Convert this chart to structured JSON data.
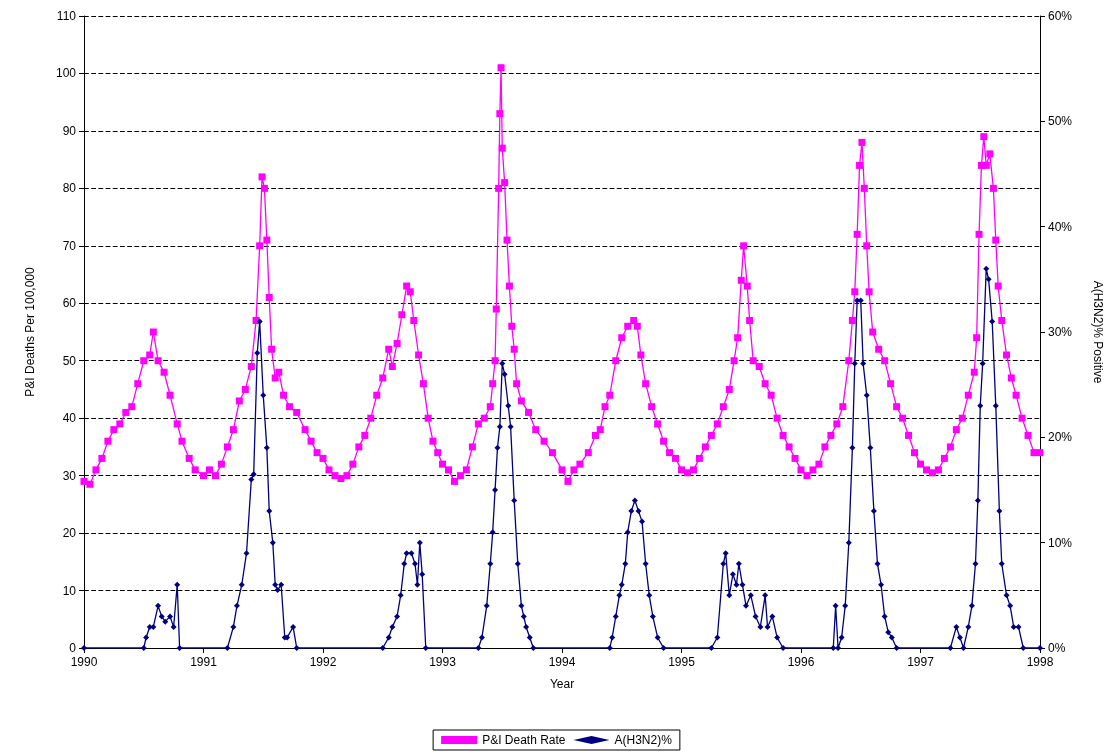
{
  "chart_data": {
    "type": "line",
    "xlabel": "Year",
    "ylabel": "P&I Deaths Per 100,000",
    "y2label": "A(H3N2)% Positive",
    "xlim": [
      1990,
      1998
    ],
    "xticks": [
      1990,
      1991,
      1992,
      1993,
      1994,
      1995,
      1996,
      1997,
      1998
    ],
    "ylim": [
      0,
      110
    ],
    "yticks": [
      0,
      10,
      20,
      30,
      40,
      50,
      60,
      70,
      80,
      90,
      100,
      110
    ],
    "y2lim": [
      0,
      60
    ],
    "y2ticks": [
      {
        "value": 0,
        "label": "0%"
      },
      {
        "value": 10,
        "label": "10%"
      },
      {
        "value": 20,
        "label": "20%"
      },
      {
        "value": 30,
        "label": "30%"
      },
      {
        "value": 40,
        "label": "40%"
      },
      {
        "value": 50,
        "label": "50%"
      },
      {
        "value": 60,
        "label": "60%"
      }
    ],
    "grid": "y",
    "legend": "bottom",
    "line_style": "solid",
    "series": [
      {
        "name": "P&I Death Rate",
        "color": "#ff00ff",
        "marker": "square",
        "x": [
          1990.0,
          1990.05,
          1990.1,
          1990.15,
          1990.2,
          1990.25,
          1990.3,
          1990.35,
          1990.4,
          1990.45,
          1990.5,
          1990.55,
          1990.58,
          1990.62,
          1990.67,
          1990.72,
          1990.78,
          1990.82,
          1990.88,
          1990.93,
          1991.0,
          1991.05,
          1991.1,
          1991.15,
          1991.2,
          1991.25,
          1991.3,
          1991.35,
          1991.4,
          1991.44,
          1991.47,
          1991.49,
          1991.51,
          1991.53,
          1991.55,
          1991.57,
          1991.6,
          1991.63,
          1991.67,
          1991.72,
          1991.78,
          1991.85,
          1991.9,
          1991.95,
          1992.0,
          1992.05,
          1992.1,
          1992.15,
          1992.2,
          1992.25,
          1992.3,
          1992.35,
          1992.4,
          1992.45,
          1992.5,
          1992.55,
          1992.58,
          1992.62,
          1992.66,
          1992.7,
          1992.73,
          1992.76,
          1992.8,
          1992.84,
          1992.88,
          1992.92,
          1992.96,
          1993.0,
          1993.05,
          1993.1,
          1993.15,
          1993.2,
          1993.25,
          1993.3,
          1993.35,
          1993.4,
          1993.42,
          1993.44,
          1993.45,
          1993.47,
          1993.48,
          1993.49,
          1993.5,
          1993.52,
          1993.54,
          1993.56,
          1993.58,
          1993.6,
          1993.62,
          1993.66,
          1993.72,
          1993.78,
          1993.85,
          1993.92,
          1994.0,
          1994.05,
          1994.1,
          1994.15,
          1994.22,
          1994.28,
          1994.32,
          1994.36,
          1994.4,
          1994.45,
          1994.5,
          1994.55,
          1994.6,
          1994.63,
          1994.66,
          1994.7,
          1994.75,
          1994.8,
          1994.85,
          1994.9,
          1994.95,
          1995.0,
          1995.05,
          1995.1,
          1995.15,
          1995.2,
          1995.25,
          1995.3,
          1995.35,
          1995.4,
          1995.44,
          1995.47,
          1995.5,
          1995.52,
          1995.55,
          1995.57,
          1995.6,
          1995.65,
          1995.7,
          1995.75,
          1995.8,
          1995.85,
          1995.9,
          1995.95,
          1996.0,
          1996.05,
          1996.1,
          1996.15,
          1996.2,
          1996.25,
          1996.3,
          1996.35,
          1996.4,
          1996.43,
          1996.45,
          1996.47,
          1996.49,
          1996.51,
          1996.53,
          1996.55,
          1996.57,
          1996.6,
          1996.65,
          1996.7,
          1996.75,
          1996.8,
          1996.85,
          1996.9,
          1996.95,
          1997.0,
          1997.05,
          1997.1,
          1997.15,
          1997.2,
          1997.25,
          1997.3,
          1997.35,
          1997.4,
          1997.45,
          1997.47,
          1997.49,
          1997.51,
          1997.53,
          1997.55,
          1997.58,
          1997.61,
          1997.63,
          1997.65,
          1997.68,
          1997.72,
          1997.76,
          1997.8,
          1997.85,
          1997.9,
          1997.95,
          1998.0
        ],
        "values": [
          29,
          28.5,
          31,
          33,
          36,
          38,
          39,
          41,
          42,
          46,
          50,
          51,
          55,
          50,
          48,
          44,
          39,
          36,
          33,
          31,
          30,
          31,
          30,
          32,
          35,
          38,
          43,
          45,
          49,
          57,
          70,
          82,
          80,
          71,
          61,
          52,
          47,
          48,
          44,
          42,
          41,
          38,
          36,
          34,
          33,
          31,
          30,
          29.5,
          30,
          32,
          35,
          37,
          40,
          44,
          47,
          52,
          49,
          53,
          58,
          63,
          62,
          57,
          51,
          46,
          40,
          36,
          34,
          32,
          31,
          29,
          30,
          31,
          35,
          39,
          40,
          42,
          46,
          50,
          59,
          80,
          93,
          101,
          87,
          81,
          71,
          63,
          56,
          52,
          46,
          43,
          41,
          38,
          36,
          34,
          31,
          29,
          31,
          32,
          34,
          37,
          38,
          42,
          44,
          50,
          54,
          56,
          57,
          56,
          51,
          46,
          42,
          39,
          36,
          34,
          33,
          31,
          30.5,
          31,
          33,
          35,
          37,
          39,
          42,
          45,
          50,
          54,
          64,
          70,
          63,
          57,
          50,
          49,
          46,
          44,
          40,
          37,
          35,
          33,
          31,
          30,
          31,
          32,
          35,
          37,
          39,
          42,
          50,
          57,
          62,
          72,
          84,
          88,
          80,
          70,
          62,
          55,
          52,
          50,
          46,
          42,
          40,
          37,
          34,
          32,
          31,
          30.5,
          31,
          33,
          35,
          38,
          40,
          44,
          48,
          54,
          72,
          84,
          89,
          84,
          86,
          80,
          71,
          63,
          57,
          51,
          47,
          44,
          40,
          37,
          34,
          34
        ]
      },
      {
        "name": "A(H3N2)%",
        "color": "#000080",
        "marker": "diamond",
        "axis": "y2",
        "x": [
          1990.0,
          1990.5,
          1990.52,
          1990.55,
          1990.58,
          1990.62,
          1990.65,
          1990.68,
          1990.72,
          1990.75,
          1990.78,
          1990.8,
          1991.2,
          1991.25,
          1991.28,
          1991.32,
          1991.36,
          1991.4,
          1991.42,
          1991.45,
          1991.47,
          1991.5,
          1991.53,
          1991.55,
          1991.58,
          1991.6,
          1991.62,
          1991.65,
          1991.68,
          1991.7,
          1991.75,
          1991.78,
          1992.5,
          1992.55,
          1992.58,
          1992.62,
          1992.65,
          1992.68,
          1992.7,
          1992.74,
          1992.77,
          1992.79,
          1992.81,
          1992.83,
          1992.86,
          1993.3,
          1993.33,
          1993.37,
          1993.4,
          1993.42,
          1993.44,
          1993.46,
          1993.48,
          1993.5,
          1993.52,
          1993.55,
          1993.57,
          1993.6,
          1993.63,
          1993.66,
          1993.68,
          1993.7,
          1993.73,
          1993.76,
          1994.4,
          1994.42,
          1994.45,
          1994.48,
          1994.5,
          1994.53,
          1994.55,
          1994.58,
          1994.61,
          1994.64,
          1994.67,
          1994.7,
          1994.73,
          1994.76,
          1994.8,
          1994.85,
          1995.25,
          1995.3,
          1995.35,
          1995.37,
          1995.4,
          1995.43,
          1995.46,
          1995.48,
          1995.51,
          1995.54,
          1995.58,
          1995.62,
          1995.66,
          1995.7,
          1995.72,
          1995.76,
          1995.8,
          1995.85,
          1996.27,
          1996.29,
          1996.31,
          1996.34,
          1996.37,
          1996.4,
          1996.43,
          1996.45,
          1996.47,
          1996.5,
          1996.52,
          1996.55,
          1996.58,
          1996.61,
          1996.64,
          1996.67,
          1996.7,
          1996.73,
          1996.76,
          1996.8,
          1997.25,
          1997.3,
          1997.33,
          1997.36,
          1997.4,
          1997.43,
          1997.46,
          1997.48,
          1997.5,
          1997.52,
          1997.55,
          1997.57,
          1997.6,
          1997.63,
          1997.66,
          1997.68,
          1997.72,
          1997.75,
          1997.78,
          1997.82,
          1997.86,
          1998.0
        ],
        "values": [
          0,
          0,
          1,
          2,
          2,
          4,
          3,
          2.5,
          3,
          2,
          6,
          0,
          0,
          2,
          4,
          6,
          9,
          16,
          16.5,
          28,
          31,
          24,
          19,
          13,
          10,
          6,
          5.5,
          6,
          1,
          1,
          2,
          0,
          0,
          1,
          2,
          3,
          5,
          8,
          9,
          9,
          8,
          6,
          10,
          7,
          0,
          0,
          1,
          4,
          8,
          11,
          15,
          19,
          21,
          27,
          26,
          23,
          21,
          14,
          8,
          4,
          3,
          2,
          1,
          0,
          0,
          1,
          3,
          5,
          6,
          8,
          11,
          13,
          14,
          13,
          12,
          8,
          5,
          3,
          1,
          0,
          0,
          1,
          8,
          9,
          5,
          7,
          6,
          8,
          6,
          4,
          5,
          3,
          2,
          5,
          2,
          3,
          1,
          0,
          0,
          4,
          0,
          1,
          4,
          10,
          19,
          27,
          33,
          33,
          27,
          24,
          19,
          13,
          8,
          6,
          3,
          1.5,
          1,
          0,
          0,
          2,
          1,
          0,
          2,
          4,
          8,
          14,
          23,
          27,
          36,
          35,
          31,
          23,
          13,
          8,
          5,
          4,
          2,
          2,
          0,
          0
        ]
      }
    ]
  }
}
